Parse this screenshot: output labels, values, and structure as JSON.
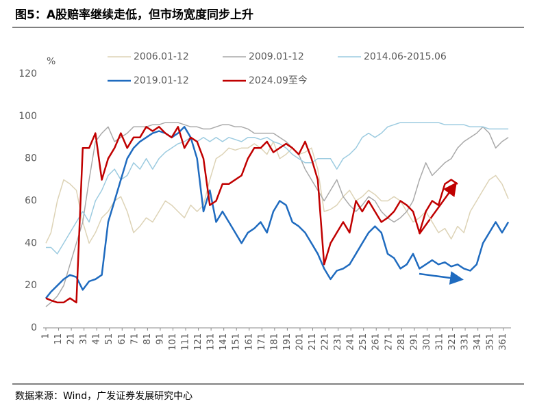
{
  "chart_data": {
    "type": "line",
    "title": "图5：A股赔率继续走低，但市场宽度同步上升",
    "source": "数据来源：Wind，广发证券发展研究中心",
    "y_unit": "%",
    "x": [
      1,
      5,
      10,
      15,
      20,
      25,
      30,
      35,
      40,
      45,
      50,
      55,
      60,
      65,
      70,
      75,
      80,
      85,
      90,
      95,
      100,
      105,
      110,
      115,
      120,
      125,
      130,
      135,
      140,
      145,
      150,
      155,
      160,
      165,
      170,
      175,
      180,
      185,
      190,
      195,
      200,
      205,
      210,
      215,
      220,
      225,
      230,
      235,
      240,
      245,
      250,
      255,
      260,
      265,
      270,
      275,
      280,
      285,
      290,
      295,
      300,
      305,
      310,
      315,
      320,
      325,
      330,
      335,
      340,
      345,
      350,
      355,
      360,
      365
    ],
    "xlim": [
      1,
      366
    ],
    "xticks": [
      1,
      11,
      21,
      31,
      41,
      51,
      61,
      71,
      81,
      91,
      101,
      111,
      121,
      131,
      141,
      151,
      161,
      171,
      181,
      191,
      201,
      211,
      221,
      231,
      241,
      251,
      261,
      271,
      281,
      291,
      301,
      311,
      321,
      331,
      341,
      351,
      361
    ],
    "ylim": [
      0,
      120
    ],
    "yticks": [
      0,
      20,
      40,
      60,
      80,
      100,
      120
    ],
    "series": [
      {
        "name": "2006.01-12",
        "color": "#ddd3b6",
        "width": 1.5,
        "values": [
          40,
          45,
          60,
          70,
          68,
          65,
          50,
          40,
          45,
          52,
          55,
          60,
          62,
          55,
          45,
          48,
          52,
          50,
          55,
          60,
          58,
          55,
          52,
          58,
          55,
          58,
          70,
          80,
          82,
          85,
          84,
          85,
          85,
          87,
          85,
          82,
          88,
          80,
          82,
          85,
          82,
          83,
          85,
          75,
          55,
          56,
          58,
          62,
          65,
          60,
          62,
          65,
          63,
          60,
          60,
          62,
          60,
          55,
          50,
          52,
          55,
          50,
          45,
          47,
          42,
          48,
          45,
          55,
          60,
          65,
          70,
          72,
          68,
          61
        ]
      },
      {
        "name": "2009.01-12",
        "color": "#a9a9a9",
        "width": 1.5,
        "values": [
          10,
          12,
          15,
          20,
          30,
          40,
          50,
          70,
          88,
          92,
          95,
          88,
          90,
          92,
          95,
          95,
          95,
          96,
          96,
          97,
          97,
          97,
          96,
          95,
          95,
          94,
          94,
          95,
          96,
          96,
          95,
          95,
          94,
          92,
          92,
          92,
          92,
          90,
          88,
          85,
          82,
          75,
          70,
          65,
          60,
          65,
          70,
          62,
          58,
          55,
          58,
          62,
          60,
          55,
          52,
          50,
          52,
          55,
          60,
          70,
          78,
          72,
          75,
          78,
          80,
          85,
          88,
          90,
          92,
          95,
          92,
          85,
          88,
          90
        ]
      },
      {
        "name": "2014.06-2015.06",
        "color": "#9ccbe0",
        "width": 1.5,
        "values": [
          38,
          38,
          35,
          40,
          45,
          50,
          55,
          50,
          60,
          65,
          72,
          75,
          70,
          72,
          78,
          75,
          80,
          75,
          80,
          83,
          85,
          87,
          88,
          90,
          88,
          90,
          88,
          90,
          88,
          90,
          89,
          88,
          90,
          90,
          89,
          90,
          88,
          87,
          85,
          82,
          80,
          78,
          78,
          80,
          80,
          80,
          75,
          80,
          82,
          85,
          90,
          92,
          90,
          92,
          95,
          96,
          97,
          97,
          97,
          97,
          97,
          97,
          97,
          96,
          96,
          96,
          96,
          95,
          95,
          95,
          94,
          94,
          94,
          94
        ]
      },
      {
        "name": "2019.01-12",
        "color": "#1f6bbf",
        "width": 2.5,
        "values": [
          14,
          17,
          20,
          23,
          25,
          24,
          18,
          22,
          23,
          25,
          50,
          60,
          70,
          80,
          85,
          88,
          90,
          92,
          93,
          92,
          90,
          92,
          95,
          90,
          80,
          55,
          65,
          50,
          55,
          50,
          45,
          40,
          45,
          47,
          50,
          45,
          55,
          60,
          58,
          50,
          48,
          45,
          40,
          35,
          28,
          23,
          27,
          28,
          30,
          35,
          40,
          45,
          48,
          45,
          35,
          33,
          28,
          30,
          35,
          28,
          30,
          32,
          30,
          31,
          29,
          30,
          28,
          27,
          30,
          40,
          45,
          50,
          45,
          50
        ]
      },
      {
        "name": "2024.09至今",
        "color": "#c00000",
        "width": 2.5,
        "values": [
          14,
          13,
          12,
          12,
          14,
          12,
          85,
          85,
          92,
          70,
          80,
          85,
          92,
          85,
          90,
          90,
          95,
          93,
          95,
          92,
          90,
          95,
          85,
          90,
          88,
          80,
          58,
          60,
          68,
          68,
          70,
          72,
          80,
          85,
          85,
          88,
          83,
          85,
          87,
          85,
          82,
          88,
          80,
          70,
          30,
          40,
          45,
          50,
          45,
          60,
          55,
          60,
          55,
          50,
          52,
          55,
          60,
          58,
          55,
          45,
          55,
          60,
          58,
          68,
          70,
          68,
          null,
          null,
          null,
          null,
          null,
          null,
          null,
          null
        ]
      }
    ]
  }
}
